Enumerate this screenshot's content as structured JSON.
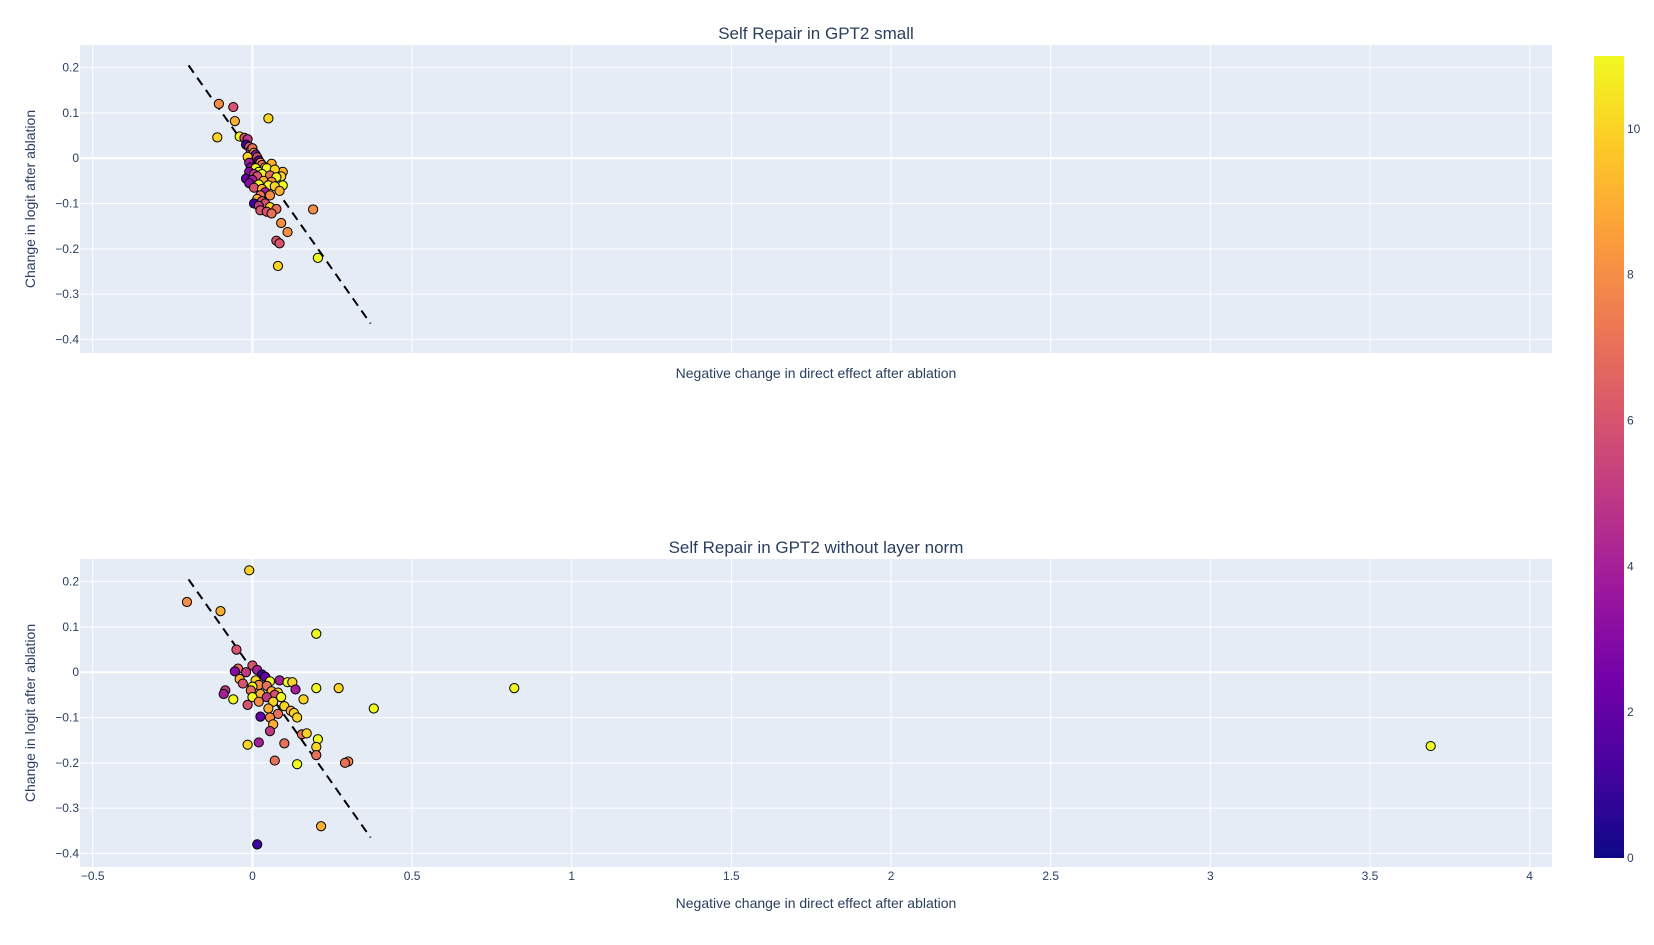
{
  "chart_data": [
    {
      "type": "scatter",
      "title": "Self Repair in GPT2 small",
      "xlabel": "Negative change in direct effect after ablation",
      "ylabel": "Change in logit after ablation",
      "xlim": [
        -0.54,
        4.07
      ],
      "ylim": [
        -0.43,
        0.25
      ],
      "xticks": [
        -0.5,
        0,
        0.5,
        1,
        1.5,
        2,
        2.5,
        3,
        3.5,
        4
      ],
      "yticks": [
        0.2,
        0.1,
        0,
        -0.1,
        -0.2,
        -0.3,
        -0.4
      ],
      "show_x_tick_labels": false,
      "grid": true,
      "fit_line": {
        "x": [
          -0.2,
          0.37
        ],
        "y": [
          0.205,
          -0.365
        ],
        "style": "dashed",
        "color": "#000000"
      },
      "points": [
        {
          "x": -0.105,
          "y": 0.12,
          "layer": 8
        },
        {
          "x": -0.06,
          "y": 0.113,
          "layer": 6
        },
        {
          "x": -0.055,
          "y": 0.082,
          "layer": 9
        },
        {
          "x": -0.11,
          "y": 0.046,
          "layer": 10
        },
        {
          "x": 0.05,
          "y": 0.088,
          "layer": 10
        },
        {
          "x": -0.04,
          "y": 0.048,
          "layer": 11
        },
        {
          "x": -0.025,
          "y": 0.045,
          "layer": 6
        },
        {
          "x": -0.015,
          "y": 0.042,
          "layer": 5
        },
        {
          "x": -0.02,
          "y": 0.03,
          "layer": 1
        },
        {
          "x": -0.01,
          "y": 0.025,
          "layer": 6
        },
        {
          "x": -0.005,
          "y": 0.018,
          "layer": 4
        },
        {
          "x": 0.0,
          "y": 0.022,
          "layer": 7
        },
        {
          "x": 0.005,
          "y": 0.012,
          "layer": 9
        },
        {
          "x": 0.01,
          "y": 0.008,
          "layer": 3
        },
        {
          "x": -0.015,
          "y": 0.003,
          "layer": 10
        },
        {
          "x": 0.015,
          "y": 0.002,
          "layer": 6
        },
        {
          "x": 0.02,
          "y": -0.005,
          "layer": 2
        },
        {
          "x": -0.01,
          "y": -0.01,
          "layer": 4
        },
        {
          "x": 0.025,
          "y": -0.01,
          "layer": 8
        },
        {
          "x": 0.06,
          "y": -0.012,
          "layer": 9
        },
        {
          "x": 0.03,
          "y": -0.015,
          "layer": 7
        },
        {
          "x": -0.005,
          "y": -0.02,
          "layer": 3
        },
        {
          "x": 0.01,
          "y": -0.022,
          "layer": 11
        },
        {
          "x": 0.04,
          "y": -0.02,
          "layer": 10
        },
        {
          "x": 0.045,
          "y": -0.022,
          "layer": 11
        },
        {
          "x": 0.095,
          "y": -0.03,
          "layer": 9
        },
        {
          "x": 0.07,
          "y": -0.025,
          "layer": 10
        },
        {
          "x": 0.02,
          "y": -0.03,
          "layer": 11
        },
        {
          "x": -0.01,
          "y": -0.03,
          "layer": 3
        },
        {
          "x": 0.005,
          "y": -0.035,
          "layer": 5
        },
        {
          "x": 0.03,
          "y": -0.035,
          "layer": 11
        },
        {
          "x": 0.055,
          "y": -0.038,
          "layer": 7
        },
        {
          "x": 0.09,
          "y": -0.04,
          "layer": 10
        },
        {
          "x": 0.015,
          "y": -0.04,
          "layer": 6
        },
        {
          "x": 0.075,
          "y": -0.042,
          "layer": 11
        },
        {
          "x": -0.02,
          "y": -0.045,
          "layer": 2
        },
        {
          "x": 0.0,
          "y": -0.048,
          "layer": 4
        },
        {
          "x": 0.035,
          "y": -0.05,
          "layer": 9
        },
        {
          "x": 0.06,
          "y": -0.052,
          "layer": 8
        },
        {
          "x": -0.01,
          "y": -0.055,
          "layer": 3
        },
        {
          "x": 0.02,
          "y": -0.058,
          "layer": 11
        },
        {
          "x": 0.05,
          "y": -0.06,
          "layer": 11
        },
        {
          "x": 0.095,
          "y": -0.06,
          "layer": 11
        },
        {
          "x": 0.07,
          "y": -0.062,
          "layer": 10
        },
        {
          "x": 0.005,
          "y": -0.065,
          "layer": 6
        },
        {
          "x": 0.03,
          "y": -0.068,
          "layer": 9
        },
        {
          "x": 0.085,
          "y": -0.072,
          "layer": 9
        },
        {
          "x": 0.04,
          "y": -0.075,
          "layer": 4
        },
        {
          "x": 0.025,
          "y": -0.082,
          "layer": 7
        },
        {
          "x": 0.055,
          "y": -0.082,
          "layer": 8
        },
        {
          "x": 0.015,
          "y": -0.09,
          "layer": 9
        },
        {
          "x": 0.03,
          "y": -0.095,
          "layer": 6
        },
        {
          "x": 0.005,
          "y": -0.1,
          "layer": 1
        },
        {
          "x": 0.04,
          "y": -0.1,
          "layer": 6
        },
        {
          "x": 0.02,
          "y": -0.105,
          "layer": 5
        },
        {
          "x": 0.055,
          "y": -0.108,
          "layer": 10
        },
        {
          "x": 0.075,
          "y": -0.112,
          "layer": 7
        },
        {
          "x": 0.025,
          "y": -0.115,
          "layer": 6
        },
        {
          "x": 0.045,
          "y": -0.118,
          "layer": 6
        },
        {
          "x": 0.06,
          "y": -0.122,
          "layer": 7
        },
        {
          "x": 0.19,
          "y": -0.113,
          "layer": 8
        },
        {
          "x": 0.09,
          "y": -0.143,
          "layer": 8
        },
        {
          "x": 0.11,
          "y": -0.163,
          "layer": 8
        },
        {
          "x": 0.075,
          "y": -0.182,
          "layer": 6
        },
        {
          "x": 0.085,
          "y": -0.188,
          "layer": 6
        },
        {
          "x": 0.205,
          "y": -0.22,
          "layer": 11
        },
        {
          "x": 0.08,
          "y": -0.238,
          "layer": 10
        }
      ]
    },
    {
      "type": "scatter",
      "title": "Self Repair in GPT2 without layer norm",
      "xlabel": "Negative change in direct effect after ablation",
      "ylabel": "Change in logit after ablation",
      "xlim": [
        -0.54,
        4.07
      ],
      "ylim": [
        -0.43,
        0.25
      ],
      "xticks": [
        -0.5,
        0,
        0.5,
        1,
        1.5,
        2,
        2.5,
        3,
        3.5,
        4
      ],
      "yticks": [
        0.2,
        0.1,
        0,
        -0.1,
        -0.2,
        -0.3,
        -0.4
      ],
      "show_x_tick_labels": true,
      "grid": true,
      "fit_line": {
        "x": [
          -0.2,
          0.37
        ],
        "y": [
          0.205,
          -0.365
        ],
        "style": "dashed",
        "color": "#000000"
      },
      "points": [
        {
          "x": -0.01,
          "y": 0.225,
          "layer": 10
        },
        {
          "x": -0.205,
          "y": 0.155,
          "layer": 8
        },
        {
          "x": -0.1,
          "y": 0.135,
          "layer": 9
        },
        {
          "x": 0.2,
          "y": 0.085,
          "layer": 11
        },
        {
          "x": -0.05,
          "y": 0.05,
          "layer": 6
        },
        {
          "x": -0.045,
          "y": 0.008,
          "layer": 7
        },
        {
          "x": -0.055,
          "y": 0.002,
          "layer": 3
        },
        {
          "x": 0.0,
          "y": 0.015,
          "layer": 6
        },
        {
          "x": 0.015,
          "y": 0.005,
          "layer": 4
        },
        {
          "x": -0.02,
          "y": 0.0,
          "layer": 5
        },
        {
          "x": 0.03,
          "y": -0.005,
          "layer": 1
        },
        {
          "x": 0.04,
          "y": -0.01,
          "layer": 2
        },
        {
          "x": -0.04,
          "y": -0.015,
          "layer": 9
        },
        {
          "x": 0.01,
          "y": -0.018,
          "layer": 10
        },
        {
          "x": 0.055,
          "y": -0.02,
          "layer": 11
        },
        {
          "x": 0.085,
          "y": -0.018,
          "layer": 4
        },
        {
          "x": 0.11,
          "y": -0.022,
          "layer": 11
        },
        {
          "x": 0.125,
          "y": -0.022,
          "layer": 10
        },
        {
          "x": -0.03,
          "y": -0.025,
          "layer": 6
        },
        {
          "x": 0.02,
          "y": -0.028,
          "layer": 8
        },
        {
          "x": 0.045,
          "y": -0.03,
          "layer": 7
        },
        {
          "x": 0.0,
          "y": -0.032,
          "layer": 11
        },
        {
          "x": 0.2,
          "y": -0.035,
          "layer": 11
        },
        {
          "x": 0.27,
          "y": -0.035,
          "layer": 10
        },
        {
          "x": 0.82,
          "y": -0.035,
          "layer": 11
        },
        {
          "x": 0.135,
          "y": -0.038,
          "layer": 4
        },
        {
          "x": -0.085,
          "y": -0.04,
          "layer": 5
        },
        {
          "x": -0.005,
          "y": -0.04,
          "layer": 7
        },
        {
          "x": 0.06,
          "y": -0.042,
          "layer": 9
        },
        {
          "x": 0.08,
          "y": -0.045,
          "layer": 10
        },
        {
          "x": -0.09,
          "y": -0.048,
          "layer": 4
        },
        {
          "x": 0.025,
          "y": -0.048,
          "layer": 9
        },
        {
          "x": 0.07,
          "y": -0.05,
          "layer": 6
        },
        {
          "x": 0.0,
          "y": -0.055,
          "layer": 11
        },
        {
          "x": 0.045,
          "y": -0.055,
          "layer": 5
        },
        {
          "x": 0.09,
          "y": -0.055,
          "layer": 11
        },
        {
          "x": -0.06,
          "y": -0.06,
          "layer": 11
        },
        {
          "x": 0.16,
          "y": -0.06,
          "layer": 10
        },
        {
          "x": 0.02,
          "y": -0.065,
          "layer": 8
        },
        {
          "x": 0.065,
          "y": -0.065,
          "layer": 10
        },
        {
          "x": -0.015,
          "y": -0.072,
          "layer": 6
        },
        {
          "x": 0.1,
          "y": -0.075,
          "layer": 10
        },
        {
          "x": 0.38,
          "y": -0.08,
          "layer": 11
        },
        {
          "x": 0.05,
          "y": -0.08,
          "layer": 9
        },
        {
          "x": 0.12,
          "y": -0.085,
          "layer": 9
        },
        {
          "x": 0.13,
          "y": -0.09,
          "layer": 10
        },
        {
          "x": 0.08,
          "y": -0.092,
          "layer": 7
        },
        {
          "x": 0.025,
          "y": -0.098,
          "layer": 2
        },
        {
          "x": 0.055,
          "y": -0.1,
          "layer": 8
        },
        {
          "x": 0.14,
          "y": -0.1,
          "layer": 10
        },
        {
          "x": 0.065,
          "y": -0.115,
          "layer": 9
        },
        {
          "x": 0.055,
          "y": -0.13,
          "layer": 5
        },
        {
          "x": 0.155,
          "y": -0.137,
          "layer": 7
        },
        {
          "x": 0.17,
          "y": -0.135,
          "layer": 10
        },
        {
          "x": 0.205,
          "y": -0.148,
          "layer": 11
        },
        {
          "x": -0.015,
          "y": -0.16,
          "layer": 10
        },
        {
          "x": 0.02,
          "y": -0.155,
          "layer": 4
        },
        {
          "x": 0.1,
          "y": -0.157,
          "layer": 7
        },
        {
          "x": 0.2,
          "y": -0.165,
          "layer": 10
        },
        {
          "x": 3.69,
          "y": -0.163,
          "layer": 11
        },
        {
          "x": 0.2,
          "y": -0.183,
          "layer": 7
        },
        {
          "x": 0.07,
          "y": -0.195,
          "layer": 7
        },
        {
          "x": 0.14,
          "y": -0.203,
          "layer": 11
        },
        {
          "x": 0.3,
          "y": -0.197,
          "layer": 8
        },
        {
          "x": 0.29,
          "y": -0.2,
          "layer": 7
        },
        {
          "x": 0.215,
          "y": -0.34,
          "layer": 9
        },
        {
          "x": 0.015,
          "y": -0.38,
          "layer": 1
        }
      ]
    }
  ],
  "colorbar": {
    "min": 0,
    "max": 11,
    "ticks": [
      0,
      2,
      4,
      6,
      8,
      10
    ],
    "colorscale": [
      "#0d0887",
      "#46039f",
      "#7201a8",
      "#9c179e",
      "#bd3786",
      "#d8576b",
      "#ed7953",
      "#fb9f3a",
      "#fdca26",
      "#f0f921"
    ]
  }
}
